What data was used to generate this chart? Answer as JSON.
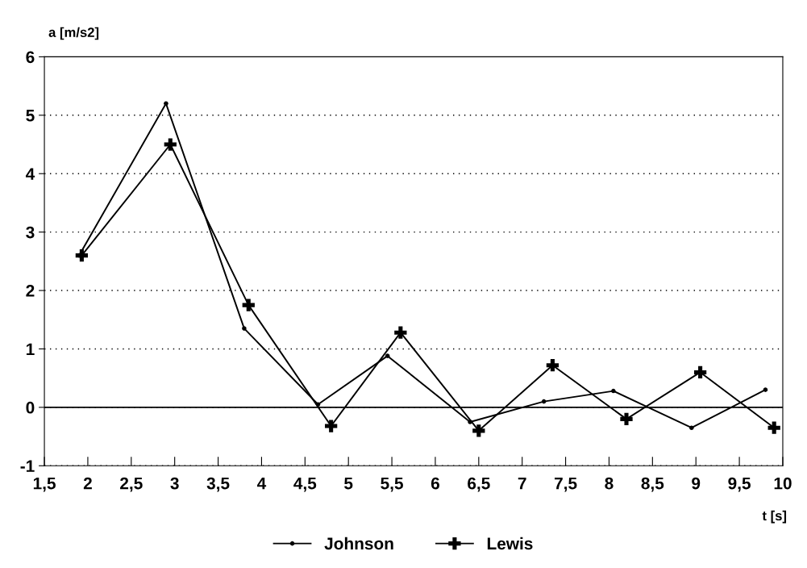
{
  "chart_data": {
    "type": "line",
    "ylabel": "a [m/s2]",
    "xlabel": "t [s]",
    "xlim": [
      1.5,
      10
    ],
    "ylim": [
      -1,
      6
    ],
    "xticks": [
      {
        "value": 1.5,
        "label": "1,5"
      },
      2,
      {
        "value": 2.5,
        "label": "2,5"
      },
      3,
      {
        "value": 3.5,
        "label": "3,5"
      },
      4,
      {
        "value": 4.5,
        "label": "4,5"
      },
      5,
      {
        "value": 5.5,
        "label": "5,5"
      },
      6,
      {
        "value": 6.5,
        "label": "6,5"
      },
      7,
      {
        "value": 7.5,
        "label": "7,5"
      },
      8,
      {
        "value": 8.5,
        "label": "8,5"
      },
      9,
      {
        "value": 9.5,
        "label": "9,5"
      },
      10
    ],
    "yticks": [
      -1,
      0,
      1,
      2,
      3,
      4,
      5,
      6
    ],
    "grid": "y",
    "legend": "bottom",
    "ref_lines": [
      {
        "axis": "y",
        "value": 0,
        "color": "#000000",
        "line_style": "solid"
      }
    ],
    "series": [
      {
        "name": "Johnson",
        "color": "#000000",
        "marker": "circle",
        "x": [
          1.9,
          2.9,
          3.8,
          4.65,
          5.45,
          6.4,
          7.25,
          8.05,
          8.95,
          9.8
        ],
        "values": [
          2.6,
          5.2,
          1.35,
          0.05,
          0.88,
          -0.25,
          0.1,
          0.28,
          -0.35,
          0.3
        ]
      },
      {
        "name": "Lewis",
        "color": "#000000",
        "marker": "cross",
        "x": [
          1.93,
          2.95,
          3.85,
          4.8,
          5.6,
          6.5,
          7.35,
          8.2,
          9.05,
          9.9
        ],
        "values": [
          2.6,
          4.5,
          1.75,
          -0.32,
          1.28,
          -0.4,
          0.72,
          -0.2,
          0.6,
          -0.35
        ]
      }
    ]
  }
}
